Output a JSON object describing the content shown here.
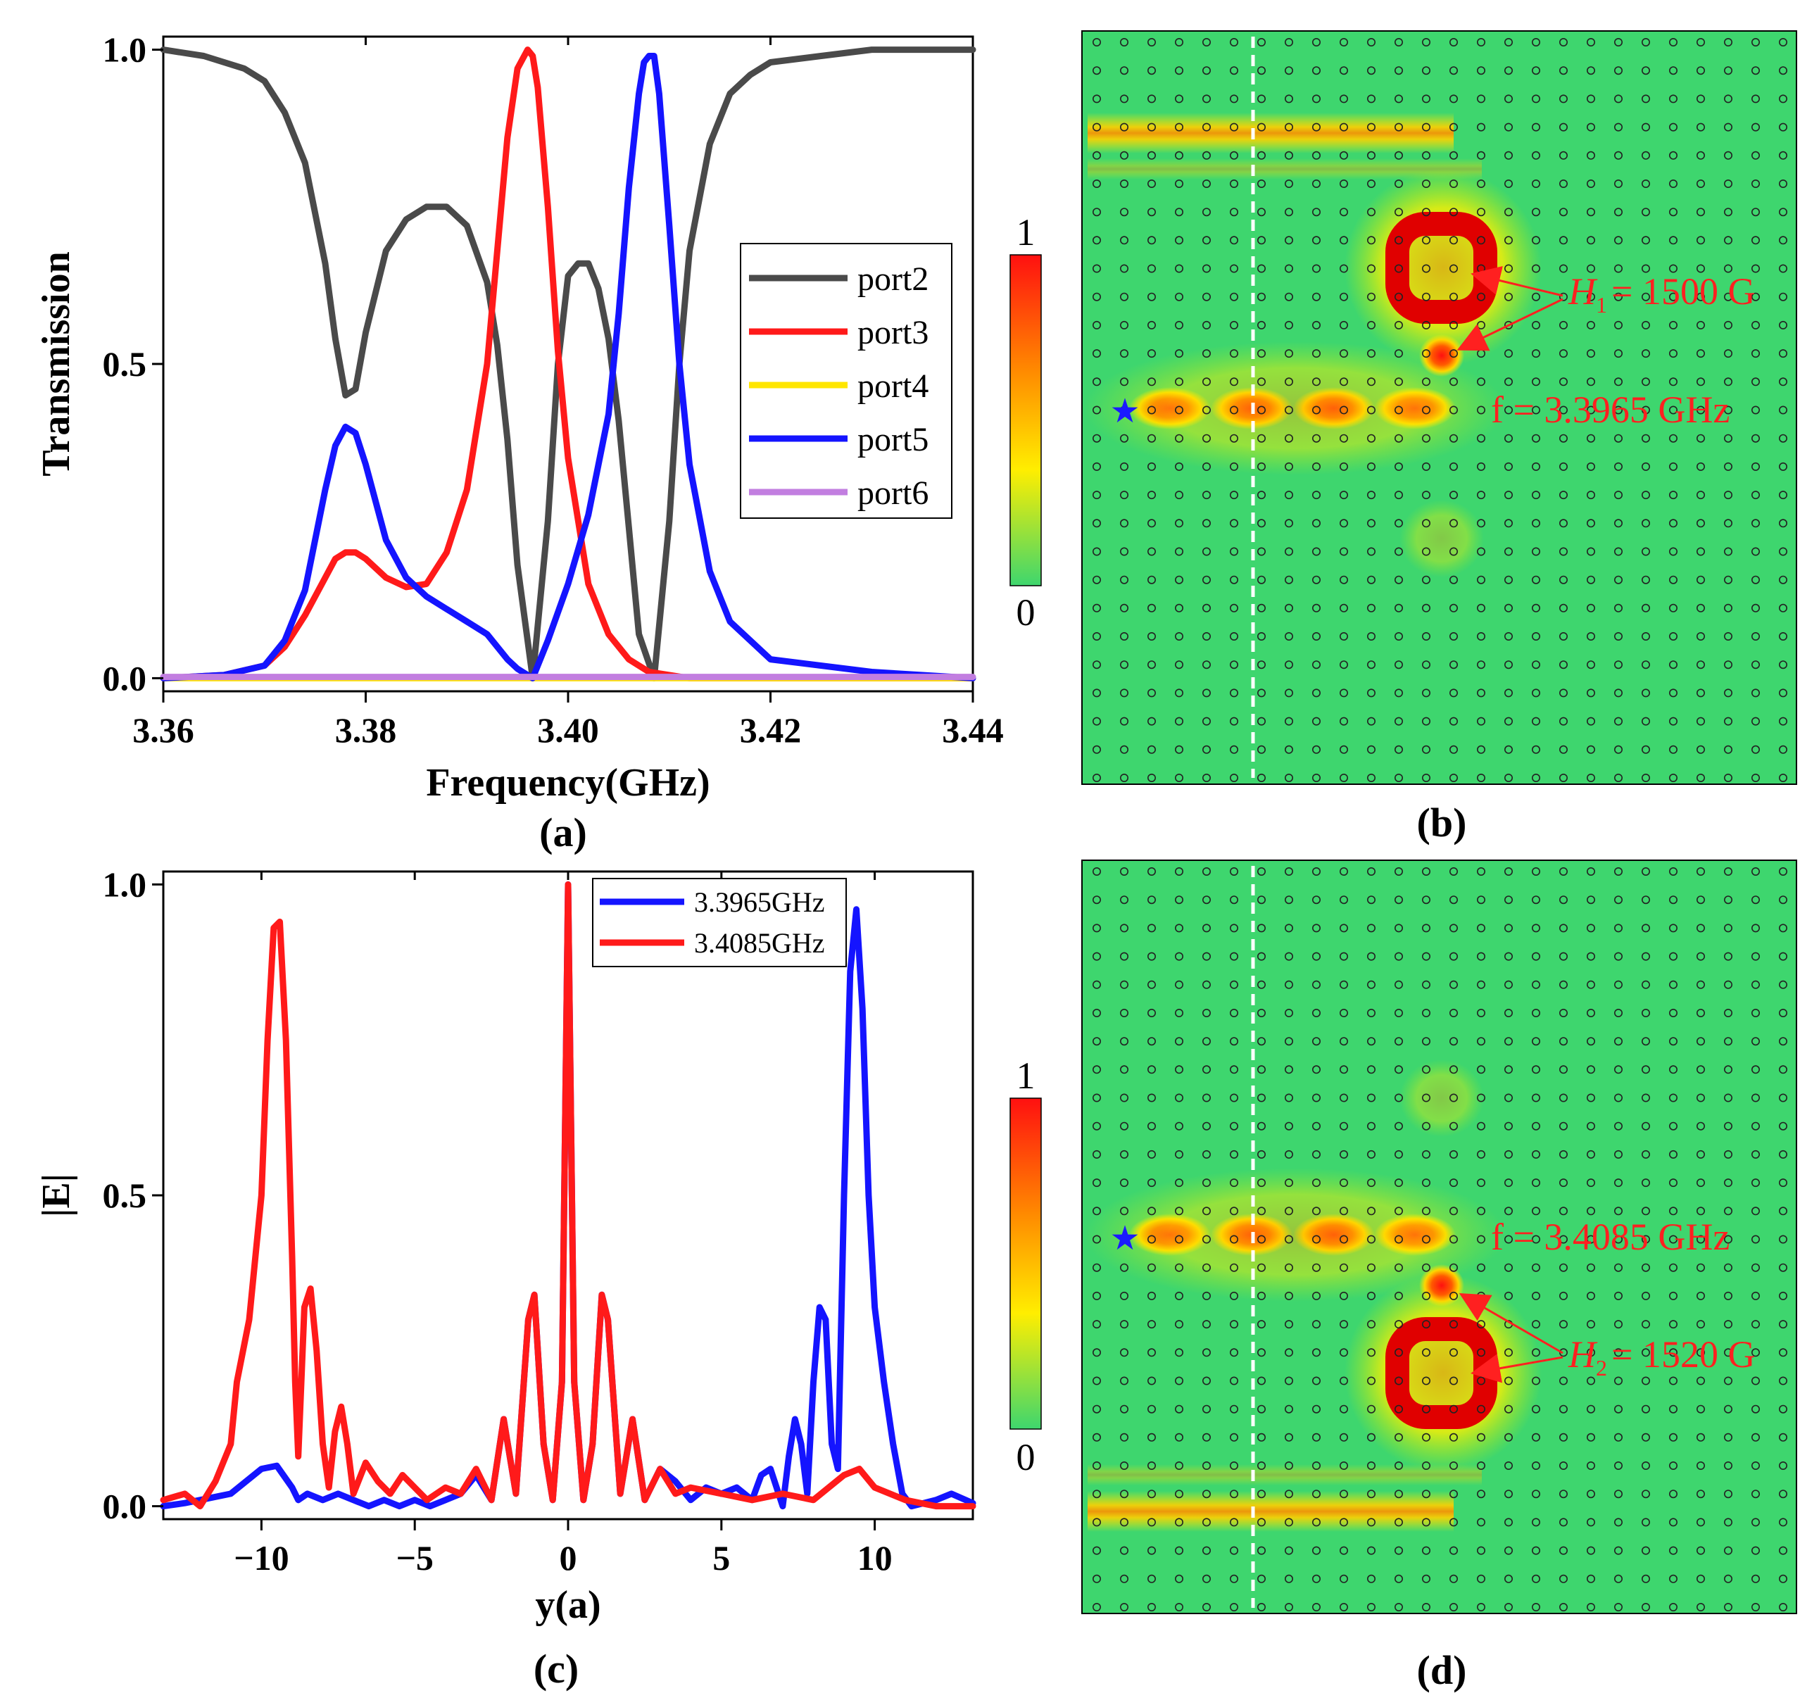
{
  "colors": {
    "port2": "#4a4a4a",
    "port3": "#ff1a1a",
    "port4": "#ffe600",
    "port5": "#1414ff",
    "port6": "#c27ee0",
    "field_bg": "#3ed66e",
    "annotation": "#ff2020",
    "star": "#1a1aff"
  },
  "chart_data": [
    {
      "id": "a",
      "type": "line",
      "panel_label": "(a)",
      "xlabel": "Frequency(GHz)",
      "ylabel": "Transmission",
      "xlim": [
        3.36,
        3.44
      ],
      "ylim": [
        0,
        1
      ],
      "xticks": [
        3.36,
        3.38,
        3.4,
        3.42,
        3.44
      ],
      "xtick_labels": [
        "3.36",
        "3.38",
        "3.40",
        "3.42",
        "3.44"
      ],
      "yticks": [
        0,
        0.5,
        1
      ],
      "ytick_labels": [
        "0.0",
        "0.5",
        "1.0"
      ],
      "legend_position": "center-right",
      "series": [
        {
          "name": "port2",
          "color_key": "port2",
          "x": [
            3.36,
            3.364,
            3.368,
            3.37,
            3.372,
            3.374,
            3.376,
            3.377,
            3.378,
            3.379,
            3.38,
            3.382,
            3.384,
            3.386,
            3.388,
            3.39,
            3.392,
            3.393,
            3.394,
            3.395,
            3.3965,
            3.398,
            3.399,
            3.4,
            3.401,
            3.402,
            3.403,
            3.404,
            3.405,
            3.406,
            3.407,
            3.4085,
            3.41,
            3.411,
            3.412,
            3.414,
            3.416,
            3.418,
            3.42,
            3.425,
            3.43,
            3.435,
            3.44
          ],
          "y": [
            1.0,
            0.99,
            0.97,
            0.95,
            0.9,
            0.82,
            0.66,
            0.54,
            0.45,
            0.46,
            0.55,
            0.68,
            0.73,
            0.75,
            0.75,
            0.72,
            0.63,
            0.53,
            0.38,
            0.18,
            0.0,
            0.25,
            0.5,
            0.64,
            0.66,
            0.66,
            0.62,
            0.54,
            0.41,
            0.24,
            0.07,
            0.0,
            0.25,
            0.5,
            0.68,
            0.85,
            0.93,
            0.96,
            0.98,
            0.99,
            1.0,
            1.0,
            1.0
          ]
        },
        {
          "name": "port3",
          "color_key": "port3",
          "x": [
            3.36,
            3.366,
            3.37,
            3.372,
            3.374,
            3.376,
            3.377,
            3.378,
            3.379,
            3.38,
            3.382,
            3.384,
            3.386,
            3.388,
            3.39,
            3.392,
            3.393,
            3.394,
            3.395,
            3.396,
            3.3965,
            3.397,
            3.398,
            3.399,
            3.4,
            3.402,
            3.404,
            3.406,
            3.408,
            3.41,
            3.412,
            3.414,
            3.44
          ],
          "y": [
            0.0,
            0.005,
            0.02,
            0.05,
            0.1,
            0.16,
            0.19,
            0.2,
            0.2,
            0.19,
            0.16,
            0.145,
            0.15,
            0.2,
            0.3,
            0.5,
            0.68,
            0.86,
            0.97,
            1.0,
            0.99,
            0.94,
            0.75,
            0.52,
            0.35,
            0.15,
            0.07,
            0.03,
            0.01,
            0.005,
            0.0,
            0.0,
            0.0
          ]
        },
        {
          "name": "port4",
          "color_key": "port4",
          "x": [
            3.36,
            3.44
          ],
          "y": [
            0.0,
            0.0
          ]
        },
        {
          "name": "port5",
          "color_key": "port5",
          "x": [
            3.36,
            3.366,
            3.37,
            3.372,
            3.374,
            3.376,
            3.377,
            3.378,
            3.379,
            3.38,
            3.382,
            3.384,
            3.386,
            3.388,
            3.39,
            3.392,
            3.394,
            3.395,
            3.396,
            3.3965,
            3.398,
            3.4,
            3.402,
            3.404,
            3.405,
            3.406,
            3.407,
            3.4075,
            3.408,
            3.4085,
            3.409,
            3.41,
            3.411,
            3.412,
            3.414,
            3.416,
            3.42,
            3.43,
            3.44
          ],
          "y": [
            0.0,
            0.005,
            0.02,
            0.06,
            0.14,
            0.3,
            0.37,
            0.4,
            0.39,
            0.34,
            0.22,
            0.16,
            0.13,
            0.11,
            0.09,
            0.07,
            0.03,
            0.015,
            0.005,
            0.0,
            0.06,
            0.15,
            0.26,
            0.42,
            0.58,
            0.78,
            0.93,
            0.98,
            0.99,
            0.99,
            0.93,
            0.72,
            0.5,
            0.34,
            0.17,
            0.09,
            0.03,
            0.01,
            0.0
          ]
        },
        {
          "name": "port6",
          "color_key": "port6",
          "x": [
            3.36,
            3.44
          ],
          "y": [
            0.002,
            0.002
          ]
        }
      ]
    },
    {
      "id": "c",
      "type": "line",
      "panel_label": "(c)",
      "xlabel": "y(a)",
      "ylabel": "|E|",
      "xlim": [
        -13.2,
        13.2
      ],
      "ylim": [
        0,
        1
      ],
      "xticks": [
        -10,
        -5,
        0,
        5,
        10
      ],
      "xtick_labels": [
        "−10",
        "−5",
        "0",
        "5",
        "10"
      ],
      "yticks": [
        0,
        0.5,
        1
      ],
      "ytick_labels": [
        "0.0",
        "0.5",
        "1.0"
      ],
      "legend_position": "top-center",
      "series": [
        {
          "name": "3.3965GHz",
          "color_key": "port5",
          "x": [
            -13.2,
            -12.5,
            -12,
            -11,
            -10.5,
            -10,
            -9.5,
            -9,
            -8.8,
            -8.5,
            -8,
            -7.5,
            -7,
            -6.5,
            -6,
            -5.5,
            -5,
            -4.5,
            -4,
            -3.5,
            -3,
            -2.5,
            -2.1,
            -1.7,
            -1.3,
            -1.1,
            -0.8,
            -0.5,
            -0.2,
            0,
            0.2,
            0.5,
            0.8,
            1.1,
            1.3,
            1.7,
            2.1,
            2.5,
            3,
            3.5,
            4,
            4.5,
            5,
            5.5,
            6,
            6.3,
            6.6,
            7,
            7.2,
            7.4,
            7.6,
            7.8,
            8,
            8.2,
            8.4,
            8.6,
            8.8,
            9,
            9.2,
            9.4,
            9.6,
            9.8,
            10,
            10.3,
            10.6,
            10.9,
            11.2,
            12,
            12.5,
            13.2
          ],
          "y": [
            0.0,
            0.005,
            0.01,
            0.02,
            0.04,
            0.06,
            0.065,
            0.03,
            0.01,
            0.02,
            0.01,
            0.02,
            0.01,
            0.0,
            0.01,
            0.0,
            0.01,
            0.0,
            0.01,
            0.02,
            0.05,
            0.01,
            0.14,
            0.02,
            0.3,
            0.34,
            0.1,
            0.01,
            0.2,
            1.0,
            0.2,
            0.01,
            0.1,
            0.34,
            0.3,
            0.02,
            0.14,
            0.01,
            0.06,
            0.04,
            0.01,
            0.03,
            0.02,
            0.03,
            0.01,
            0.05,
            0.06,
            0.0,
            0.08,
            0.14,
            0.1,
            0.02,
            0.2,
            0.32,
            0.3,
            0.1,
            0.06,
            0.5,
            0.86,
            0.96,
            0.8,
            0.5,
            0.32,
            0.2,
            0.1,
            0.02,
            0.0,
            0.01,
            0.02,
            0.005
          ]
        },
        {
          "name": "3.4085GHz",
          "color_key": "port3",
          "x": [
            -13.2,
            -12.5,
            -12,
            -11.5,
            -11,
            -10.8,
            -10.4,
            -10,
            -9.8,
            -9.6,
            -9.4,
            -9.2,
            -9,
            -8.9,
            -8.8,
            -8.6,
            -8.4,
            -8.2,
            -8,
            -7.8,
            -7.6,
            -7.4,
            -7.2,
            -7,
            -6.6,
            -6.2,
            -5.8,
            -5.4,
            -5,
            -4.6,
            -4,
            -3.5,
            -3,
            -2.5,
            -2.1,
            -1.7,
            -1.3,
            -1.1,
            -0.8,
            -0.5,
            -0.2,
            0,
            0.2,
            0.5,
            0.8,
            1.1,
            1.3,
            1.7,
            2.1,
            2.5,
            3,
            3.5,
            4,
            5,
            6,
            7,
            8,
            9,
            9.5,
            10,
            11,
            12,
            13.2
          ],
          "y": [
            0.01,
            0.02,
            0.0,
            0.04,
            0.1,
            0.2,
            0.3,
            0.5,
            0.75,
            0.93,
            0.94,
            0.75,
            0.4,
            0.2,
            0.08,
            0.32,
            0.35,
            0.25,
            0.1,
            0.03,
            0.12,
            0.16,
            0.1,
            0.02,
            0.07,
            0.04,
            0.02,
            0.05,
            0.03,
            0.01,
            0.03,
            0.02,
            0.06,
            0.01,
            0.14,
            0.02,
            0.3,
            0.34,
            0.1,
            0.01,
            0.2,
            1.0,
            0.2,
            0.01,
            0.1,
            0.34,
            0.3,
            0.02,
            0.14,
            0.01,
            0.06,
            0.02,
            0.03,
            0.02,
            0.01,
            0.02,
            0.01,
            0.05,
            0.06,
            0.03,
            0.01,
            0.0,
            0.0
          ]
        }
      ]
    }
  ],
  "panels": {
    "b": {
      "label": "(b)",
      "colorbar_max": "1",
      "colorbar_min": "0",
      "annotation_f": "f = 3.3965 GHz",
      "annotation_H_symbol": "H",
      "annotation_H_sub": "1",
      "annotation_H_rest": "= 1500 G"
    },
    "d": {
      "label": "(d)",
      "colorbar_max": "1",
      "colorbar_min": "0",
      "annotation_f": "f = 3.4085 GHz",
      "annotation_H_symbol": "H",
      "annotation_H_sub": "2",
      "annotation_H_rest": "= 1520 G"
    }
  }
}
